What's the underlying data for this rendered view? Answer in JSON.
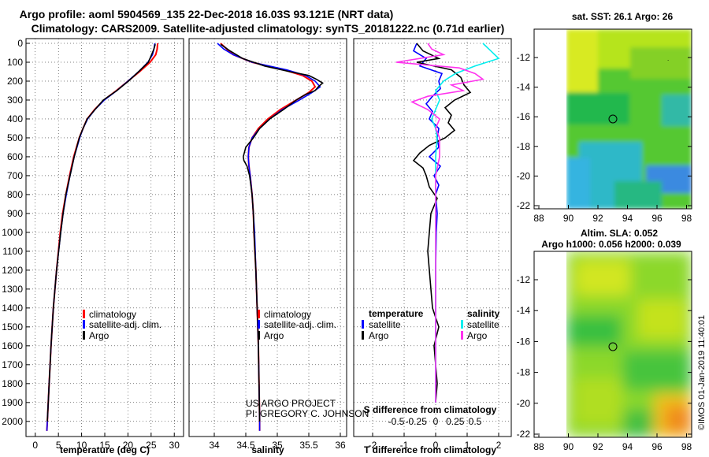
{
  "header": {
    "line1": "Argo profile: aoml 5904569_135 22-Dec-2018 16.03S 93.121E (NRT data)",
    "line2": "Climatology: CARS2009. Satellite-adjusted climatology: synTS_20181222.nc (0.71d earlier)"
  },
  "colors": {
    "climatology": "#ff0000",
    "satellite": "#0000ff",
    "argo": "#000000",
    "sat_salinity": "#00eeee",
    "argo_salinity": "#ff33ee"
  },
  "chart_data": [
    {
      "type": "line",
      "name": "temperature",
      "xlabel": "temperature (deg C)",
      "ylabel": "",
      "xlim": [
        -2,
        32
      ],
      "ylim": [
        2080,
        0
      ],
      "xticks": [
        "0",
        "5",
        "10",
        "15",
        "20",
        "25",
        "30"
      ],
      "yticks": [
        "0",
        "100",
        "200",
        "300",
        "400",
        "500",
        "600",
        "700",
        "800",
        "900",
        "1000",
        "1100",
        "1200",
        "1300",
        "1400",
        "1500",
        "1600",
        "1700",
        "1800",
        "1900",
        "2000"
      ],
      "legend": [
        "climatology",
        "satellite-adj. clim.",
        "Argo"
      ],
      "series": [
        {
          "name": "climatology",
          "depth": [
            0,
            30,
            60,
            100,
            150,
            200,
            250,
            300,
            350,
            400,
            450,
            500,
            600,
            700,
            800,
            900,
            1000,
            1200,
            1400,
            1600,
            1800,
            2000,
            2050
          ],
          "values": [
            26.4,
            26.3,
            26,
            24.8,
            22.5,
            20,
            17.5,
            14.8,
            12.8,
            11.2,
            10.3,
            9.5,
            8.3,
            7.4,
            6.6,
            5.9,
            5.4,
            4.6,
            3.9,
            3.4,
            3,
            2.6,
            2.5
          ]
        },
        {
          "name": "satellite-adj. clim.",
          "depth": [
            0,
            30,
            60,
            100,
            150,
            200,
            250,
            300,
            350,
            400,
            450,
            500,
            600,
            700,
            800,
            900,
            1000,
            1200,
            1400,
            1600,
            1800,
            2000,
            2050
          ],
          "values": [
            25.8,
            25.6,
            25.3,
            24.3,
            22.3,
            20,
            17.6,
            14.9,
            12.9,
            11.3,
            10.3,
            9.6,
            8.4,
            7.5,
            6.7,
            6,
            5.5,
            4.6,
            3.9,
            3.4,
            3,
            2.6,
            2.5
          ]
        },
        {
          "name": "Argo",
          "depth": [
            5,
            30,
            60,
            100,
            150,
            200,
            250,
            300,
            350,
            400,
            450,
            500,
            600,
            700,
            800,
            900,
            1000,
            1200,
            1400,
            1600,
            1800,
            2000
          ],
          "values": [
            25.9,
            25.6,
            25.1,
            24.4,
            22.3,
            20.1,
            17.6,
            14.7,
            12.9,
            11.2,
            10.3,
            9.5,
            8.4,
            7.5,
            6.6,
            6,
            5.5,
            4.6,
            3.9,
            3.4,
            3,
            2.6
          ]
        }
      ]
    },
    {
      "type": "line",
      "name": "salinity",
      "xlabel": "salinity",
      "ylabel": "",
      "xlim": [
        33.6,
        36.1
      ],
      "ylim": [
        2080,
        0
      ],
      "xticks": [
        "34",
        "34.5",
        "35",
        "35.5",
        "36"
      ],
      "legend": [
        "climatology",
        "satellite-adj. clim.",
        "Argo"
      ],
      "footer": [
        "US ARGO PROJECT",
        "PI: GREGORY C. JOHNSON"
      ],
      "series": [
        {
          "name": "climatology",
          "depth": [
            0,
            30,
            60,
            100,
            140,
            170,
            200,
            230,
            260,
            300,
            350,
            400,
            450,
            500,
            550,
            600,
            650,
            700,
            800,
            900,
            1000,
            1200,
            1400,
            1600,
            1800,
            2000,
            2050
          ],
          "values": [
            34.1,
            34.2,
            34.3,
            34.6,
            35.1,
            35.4,
            35.55,
            35.6,
            35.5,
            35.3,
            35.05,
            34.85,
            34.7,
            34.6,
            34.55,
            34.54,
            34.55,
            34.57,
            34.6,
            34.62,
            34.63,
            34.66,
            34.68,
            34.7,
            34.71,
            34.72,
            34.72
          ]
        },
        {
          "name": "satellite-adj. clim.",
          "depth": [
            0,
            30,
            60,
            100,
            140,
            170,
            200,
            230,
            260,
            300,
            350,
            400,
            450,
            500,
            550,
            600,
            650,
            700,
            800,
            900,
            1000,
            1200,
            1400,
            1600,
            1800,
            2000,
            2050
          ],
          "values": [
            34.05,
            34.15,
            34.3,
            34.6,
            35.15,
            35.45,
            35.6,
            35.68,
            35.55,
            35.35,
            35.08,
            34.88,
            34.72,
            34.6,
            34.55,
            34.54,
            34.55,
            34.57,
            34.6,
            34.62,
            34.64,
            34.66,
            34.68,
            34.7,
            34.71,
            34.72,
            34.72
          ]
        },
        {
          "name": "Argo",
          "depth": [
            5,
            40,
            80,
            120,
            150,
            170,
            190,
            210,
            230,
            250,
            270,
            300,
            350,
            400,
            450,
            500,
            550,
            600,
            620,
            650,
            700,
            800,
            900,
            1000,
            1200,
            1400,
            1600,
            1800,
            2000
          ],
          "values": [
            34.1,
            34.25,
            34.45,
            34.8,
            35.2,
            35.5,
            35.62,
            35.72,
            35.65,
            35.6,
            35.45,
            35.3,
            35.1,
            34.88,
            34.72,
            34.62,
            34.5,
            34.46,
            34.47,
            34.52,
            34.56,
            34.6,
            34.62,
            34.63,
            34.66,
            34.68,
            34.7,
            34.71,
            34.72
          ]
        }
      ]
    },
    {
      "type": "line",
      "name": "difference",
      "xlabel": "T difference from climatology",
      "xlabel2": "S difference from climatology",
      "xlim": [
        -2.6,
        2.4
      ],
      "ylim": [
        2080,
        0
      ],
      "xticks": [
        "-2",
        "-1",
        "0",
        "1",
        "2"
      ],
      "xticks_s": [
        "-0.5",
        "-0.25",
        "0",
        "0.25",
        "0.5"
      ],
      "legend_temperature": {
        "title": "temperature",
        "items": [
          "satellite",
          "Argo"
        ]
      },
      "legend_salinity": {
        "title": "salinity",
        "items": [
          "satellite",
          "Argo"
        ]
      },
      "series": [
        {
          "name": "T satellite",
          "depth": [
            0,
            40,
            80,
            120,
            160,
            200,
            240,
            280,
            320,
            360,
            400,
            450,
            500,
            550,
            600,
            650,
            700,
            750,
            800,
            900,
            1000,
            1200,
            1400,
            1600,
            1800,
            1900
          ],
          "values": [
            -0.6,
            -0.7,
            -0.3,
            -0.5,
            0.2,
            0.1,
            0.15,
            -0.1,
            -0.3,
            -0.1,
            -0.2,
            0.1,
            0.05,
            0.1,
            -0.2,
            0.15,
            -0.05,
            0.1,
            0,
            0.05,
            0.02,
            0,
            0,
            0,
            0,
            0
          ]
        },
        {
          "name": "T Argo",
          "depth": [
            0,
            40,
            80,
            100,
            140,
            180,
            220,
            260,
            300,
            340,
            380,
            420,
            460,
            500,
            540,
            580,
            620,
            660,
            700,
            760,
            820,
            900,
            1000,
            1100,
            1200,
            1300,
            1400,
            1500,
            1600,
            1700,
            1800,
            1900
          ],
          "values": [
            -0.6,
            -0.4,
            0.1,
            -0.6,
            0.5,
            0.8,
            0.9,
            1.1,
            0.6,
            0.3,
            0.5,
            0.4,
            0.6,
            0.3,
            -0.2,
            -0.5,
            -0.7,
            -0.4,
            -0.3,
            -0.2,
            0.05,
            -0.15,
            -0.2,
            -0.25,
            -0.2,
            -0.15,
            -0.1,
            0.1,
            -0.05,
            0,
            0.05,
            0
          ]
        },
        {
          "name": "S satellite",
          "depth": [
            0,
            40,
            80,
            120,
            160,
            200,
            250,
            300,
            350,
            400,
            450,
            500,
            600,
            700,
            800,
            900,
            1000,
            1200,
            1400,
            1600,
            1800,
            1900
          ],
          "values": [
            0.6,
            0.7,
            0.8,
            0.5,
            0.25,
            0.1,
            0,
            0.05,
            0,
            -0.05,
            0,
            0.02,
            0,
            0,
            0,
            0,
            0,
            0,
            0,
            0,
            0,
            0
          ]
        },
        {
          "name": "S Argo",
          "depth": [
            0,
            30,
            60,
            100,
            130,
            160,
            190,
            220,
            250,
            280,
            310,
            350,
            400,
            450,
            500,
            600,
            700,
            800,
            900,
            1000,
            1200,
            1400,
            1600,
            1800,
            1900
          ],
          "values": [
            -0.1,
            -0.05,
            0.1,
            -0.5,
            0.3,
            0.5,
            0.6,
            0.2,
            0.35,
            -0.1,
            -0.3,
            -0.1,
            0.05,
            0,
            0.05,
            0.05,
            0,
            0,
            0,
            0,
            0,
            0,
            0,
            0,
            0
          ]
        }
      ]
    }
  ],
  "maps": {
    "sst": {
      "title": "sat. SST: 26.1 Argo: 26",
      "yticks": [
        "-12",
        "-14",
        "-16",
        "-18",
        "-20",
        "-22"
      ],
      "xticks": [
        "88",
        "90",
        "92",
        "94",
        "96",
        "98"
      ]
    },
    "sla": {
      "title1": "Altim. SLA: 0.052",
      "title2": "Argo h1000: 0.056 h2000: 0.039",
      "yticks": [
        "-12",
        "-14",
        "-16",
        "-18",
        "-20",
        "-22"
      ],
      "xticks": [
        "88",
        "90",
        "92",
        "94",
        "96",
        "98"
      ]
    }
  },
  "credit": "©IMOS 01-Jan-2019 11:40:01"
}
